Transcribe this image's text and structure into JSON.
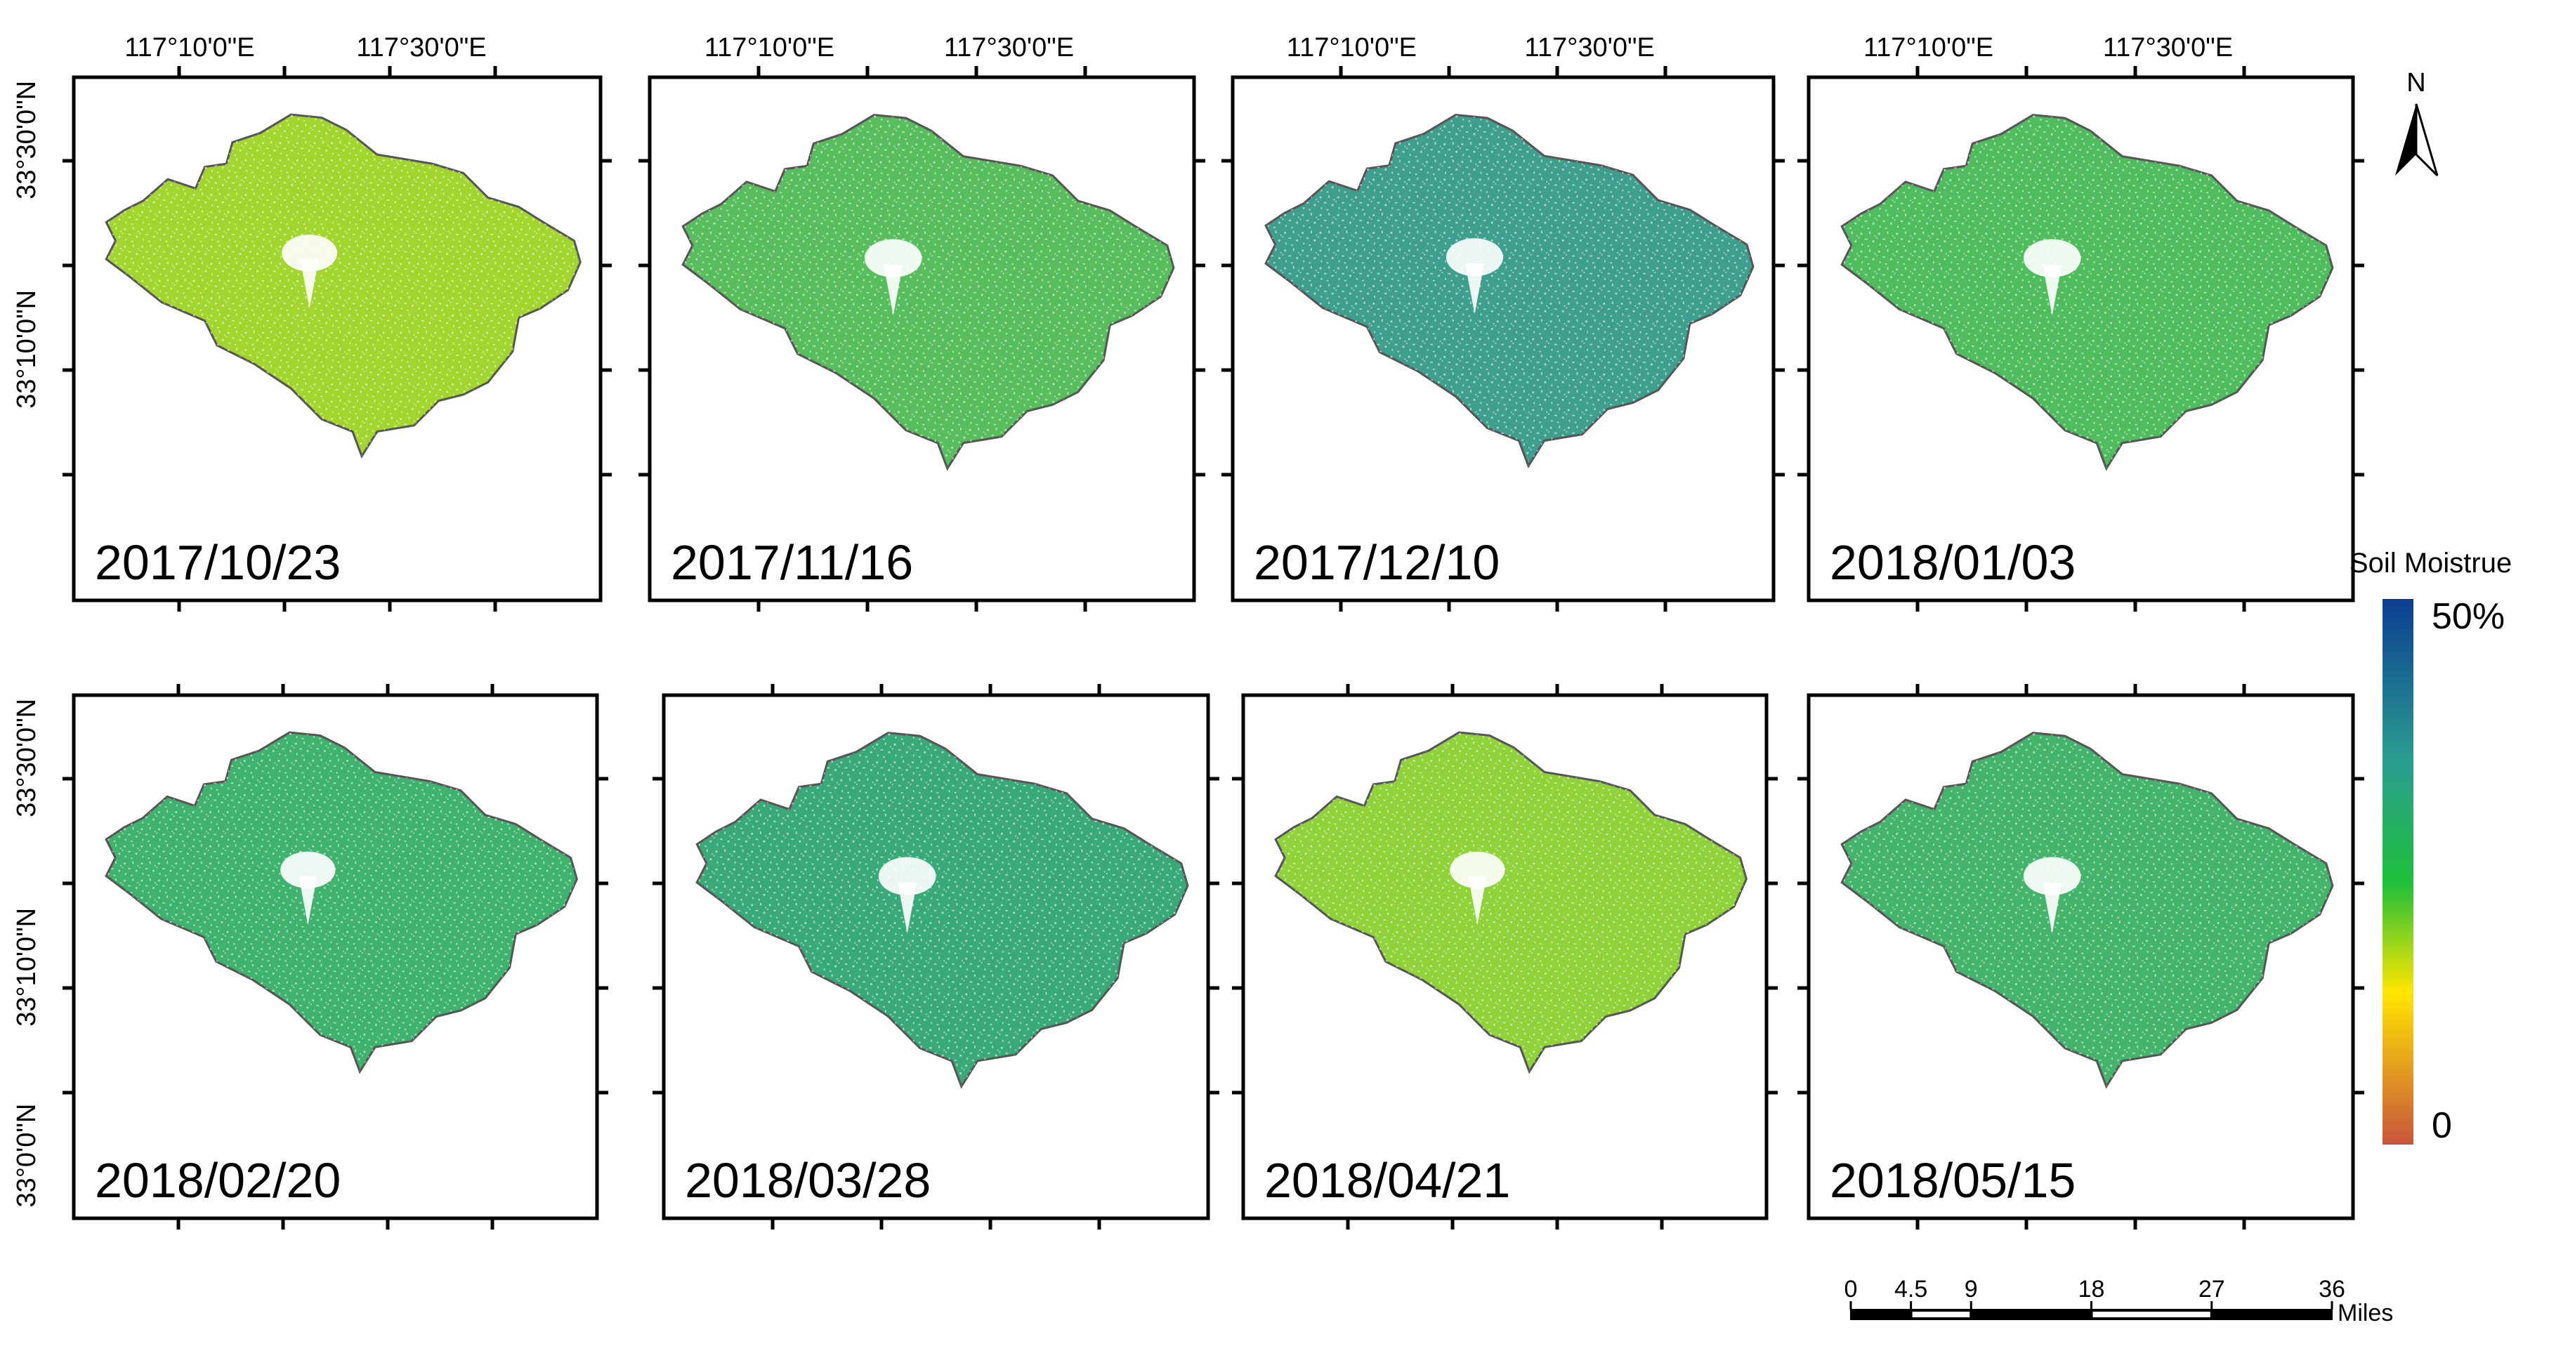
{
  "panels": [
    {
      "date": "2017/10/23",
      "color": "#a2d62e",
      "top_labels": [
        "117°10'0\"E",
        "117°30'0\"E"
      ],
      "left_labels": [
        "33°30'0\"N",
        "33°10'0\"N"
      ]
    },
    {
      "date": "2017/11/16",
      "color": "#58bd5c",
      "top_labels": [
        "117°10'0\"E",
        "117°30'0\"E"
      ],
      "left_labels": []
    },
    {
      "date": "2017/12/10",
      "color": "#3f9f8e",
      "top_labels": [
        "117°10'0\"E",
        "117°30'0\"E"
      ],
      "left_labels": []
    },
    {
      "date": "2018/01/03",
      "color": "#4fbc5e",
      "top_labels": [
        "117°10'0\"E",
        "117°30'0\"E"
      ],
      "left_labels": []
    },
    {
      "date": "2018/02/20",
      "color": "#3fb36e",
      "top_labels": [],
      "left_labels": [
        "33°30'0\"N",
        "33°10'0\"N",
        "33°0'0\"N"
      ]
    },
    {
      "date": "2018/03/28",
      "color": "#3aa97a",
      "top_labels": [],
      "left_labels": []
    },
    {
      "date": "2018/04/21",
      "color": "#8fd23a",
      "top_labels": [],
      "left_labels": []
    },
    {
      "date": "2018/05/15",
      "color": "#44b46c",
      "top_labels": [],
      "left_labels": []
    }
  ],
  "north_arrow": {
    "label": "N",
    "icon": "north-arrow-icon"
  },
  "legend": {
    "title": "Soil Moistrue",
    "max_label": "50%",
    "min_label": "0",
    "colors": [
      "#0b3d91",
      "#2a9d8f",
      "#1fbf3a",
      "#ffe600",
      "#c8553d"
    ]
  },
  "scale_bar": {
    "ticks": [
      "0",
      "4.5",
      "9",
      "18",
      "27",
      "36"
    ],
    "values": [
      0,
      4.5,
      9,
      18,
      27,
      36
    ],
    "unit": "Miles"
  }
}
